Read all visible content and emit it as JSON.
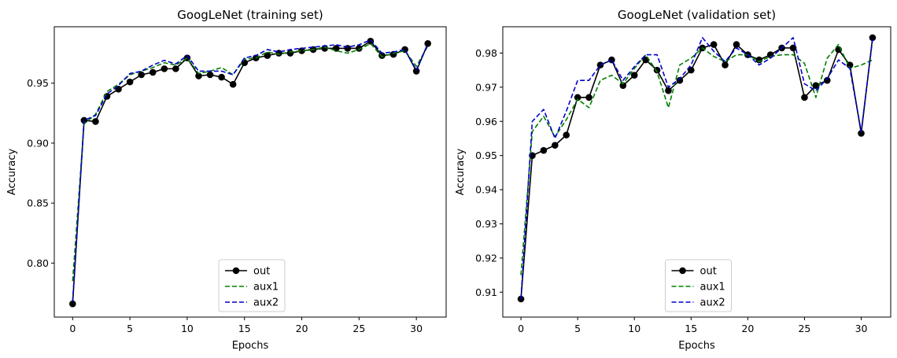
{
  "chart_data": [
    {
      "type": "line",
      "title": "GoogLeNet (training set)",
      "xlabel": "Epochs",
      "ylabel": "Accuracy",
      "xlim": [
        -1.6,
        32.6
      ],
      "ylim": [
        0.755,
        0.997
      ],
      "xticks": [
        0,
        5,
        10,
        15,
        20,
        25,
        30
      ],
      "xtick_labels": [
        "0",
        "5",
        "10",
        "15",
        "20",
        "25",
        "30"
      ],
      "yticks": [
        0.8,
        0.85,
        0.9,
        0.95
      ],
      "ytick_labels": [
        "0.80",
        "0.85",
        "0.90",
        "0.95"
      ],
      "legend_position": "lower center",
      "x": [
        0,
        1,
        2,
        3,
        4,
        5,
        6,
        7,
        8,
        9,
        10,
        11,
        12,
        13,
        14,
        15,
        16,
        17,
        18,
        19,
        20,
        21,
        22,
        23,
        24,
        25,
        26,
        27,
        28,
        29,
        30,
        31
      ],
      "series": [
        {
          "name": "out",
          "color": "#000000",
          "style": "solid-marker",
          "values": [
            0.766,
            0.919,
            0.918,
            0.939,
            0.945,
            0.951,
            0.957,
            0.959,
            0.962,
            0.962,
            0.971,
            0.956,
            0.957,
            0.955,
            0.949,
            0.967,
            0.971,
            0.973,
            0.975,
            0.975,
            0.977,
            0.978,
            0.979,
            0.979,
            0.979,
            0.979,
            0.985,
            0.973,
            0.974,
            0.978,
            0.96,
            0.983
          ]
        },
        {
          "name": "aux1",
          "color": "#008000",
          "style": "dashed",
          "values": [
            0.785,
            0.916,
            0.924,
            0.943,
            0.949,
            0.957,
            0.96,
            0.963,
            0.967,
            0.965,
            0.971,
            0.958,
            0.96,
            0.963,
            0.957,
            0.97,
            0.971,
            0.976,
            0.974,
            0.976,
            0.977,
            0.978,
            0.98,
            0.977,
            0.975,
            0.978,
            0.983,
            0.972,
            0.975,
            0.977,
            0.964,
            0.981
          ]
        },
        {
          "name": "aux2",
          "color": "#0000cc",
          "style": "dashed",
          "values": [
            0.768,
            0.919,
            0.923,
            0.941,
            0.948,
            0.958,
            0.96,
            0.965,
            0.969,
            0.966,
            0.973,
            0.96,
            0.96,
            0.96,
            0.957,
            0.971,
            0.973,
            0.978,
            0.976,
            0.978,
            0.979,
            0.98,
            0.981,
            0.982,
            0.98,
            0.982,
            0.986,
            0.975,
            0.976,
            0.978,
            0.961,
            0.982
          ]
        }
      ]
    },
    {
      "type": "line",
      "title": "GoogLeNet (validation set)",
      "xlabel": "Epochs",
      "ylabel": "Accuracy",
      "xlim": [
        -1.6,
        32.6
      ],
      "ylim": [
        0.9027,
        0.9877
      ],
      "xticks": [
        0,
        5,
        10,
        15,
        20,
        25,
        30
      ],
      "xtick_labels": [
        "0",
        "5",
        "10",
        "15",
        "20",
        "25",
        "30"
      ],
      "yticks": [
        0.91,
        0.92,
        0.93,
        0.94,
        0.95,
        0.96,
        0.97,
        0.98
      ],
      "ytick_labels": [
        "0.91",
        "0.92",
        "0.93",
        "0.94",
        "0.95",
        "0.96",
        "0.97",
        "0.98"
      ],
      "legend_position": "lower center",
      "x": [
        0,
        1,
        2,
        3,
        4,
        5,
        6,
        7,
        8,
        9,
        10,
        11,
        12,
        13,
        14,
        15,
        16,
        17,
        18,
        19,
        20,
        21,
        22,
        23,
        24,
        25,
        26,
        27,
        28,
        29,
        30,
        31
      ],
      "series": [
        {
          "name": "out",
          "color": "#000000",
          "style": "solid-marker",
          "values": [
            0.908,
            0.95,
            0.9515,
            0.953,
            0.956,
            0.967,
            0.967,
            0.9765,
            0.978,
            0.9705,
            0.9735,
            0.978,
            0.975,
            0.969,
            0.972,
            0.975,
            0.9815,
            0.9825,
            0.9765,
            0.9825,
            0.9795,
            0.978,
            0.9795,
            0.9815,
            0.9815,
            0.967,
            0.9705,
            0.972,
            0.981,
            0.9765,
            0.9565,
            0.9845
          ]
        },
        {
          "name": "aux1",
          "color": "#008000",
          "style": "dashed",
          "values": [
            0.915,
            0.957,
            0.9615,
            0.9555,
            0.9605,
            0.9665,
            0.964,
            0.972,
            0.9735,
            0.971,
            0.9755,
            0.9795,
            0.9745,
            0.964,
            0.9765,
            0.9785,
            0.9815,
            0.979,
            0.9775,
            0.9795,
            0.9795,
            0.9775,
            0.979,
            0.9795,
            0.9795,
            0.977,
            0.967,
            0.9785,
            0.9825,
            0.9755,
            0.9765,
            0.978
          ]
        },
        {
          "name": "aux2",
          "color": "#0000cc",
          "style": "dashed",
          "values": [
            0.908,
            0.96,
            0.9635,
            0.955,
            0.963,
            0.972,
            0.972,
            0.9765,
            0.978,
            0.972,
            0.976,
            0.9795,
            0.9795,
            0.97,
            0.9725,
            0.9765,
            0.9845,
            0.9805,
            0.9775,
            0.9815,
            0.9795,
            0.9765,
            0.9785,
            0.9815,
            0.9845,
            0.971,
            0.969,
            0.9725,
            0.978,
            0.9755,
            0.957,
            0.984
          ]
        }
      ]
    }
  ]
}
